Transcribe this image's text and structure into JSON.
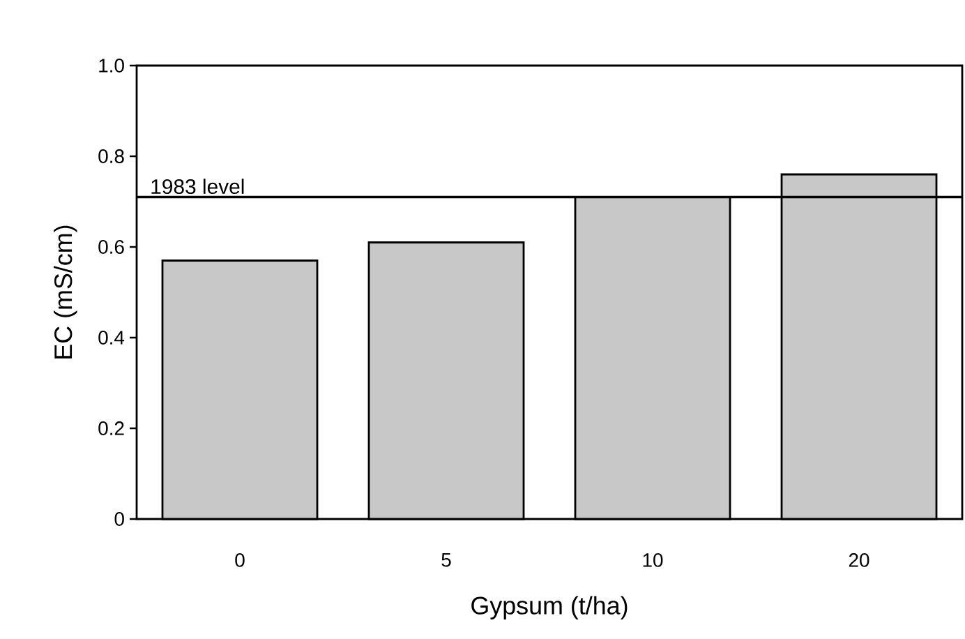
{
  "chart_data": {
    "type": "bar",
    "xlabel": "Gypsum (t/ha)",
    "ylabel": "EC (mS/cm)",
    "categories": [
      "0",
      "5",
      "10",
      "20"
    ],
    "values": [
      0.57,
      0.61,
      0.71,
      0.76
    ],
    "color": "#c8c8c8",
    "ylim": [
      0,
      1.0
    ],
    "yticks": [
      0,
      0.2,
      0.4,
      0.6,
      0.8,
      {
        "value": 1.0,
        "label": "1.0"
      }
    ],
    "ref_lines": [
      {
        "axis": "y",
        "value": 0.71,
        "label": "1983 level",
        "color": "#000000",
        "line_style": "solid"
      }
    ],
    "grid": false
  }
}
